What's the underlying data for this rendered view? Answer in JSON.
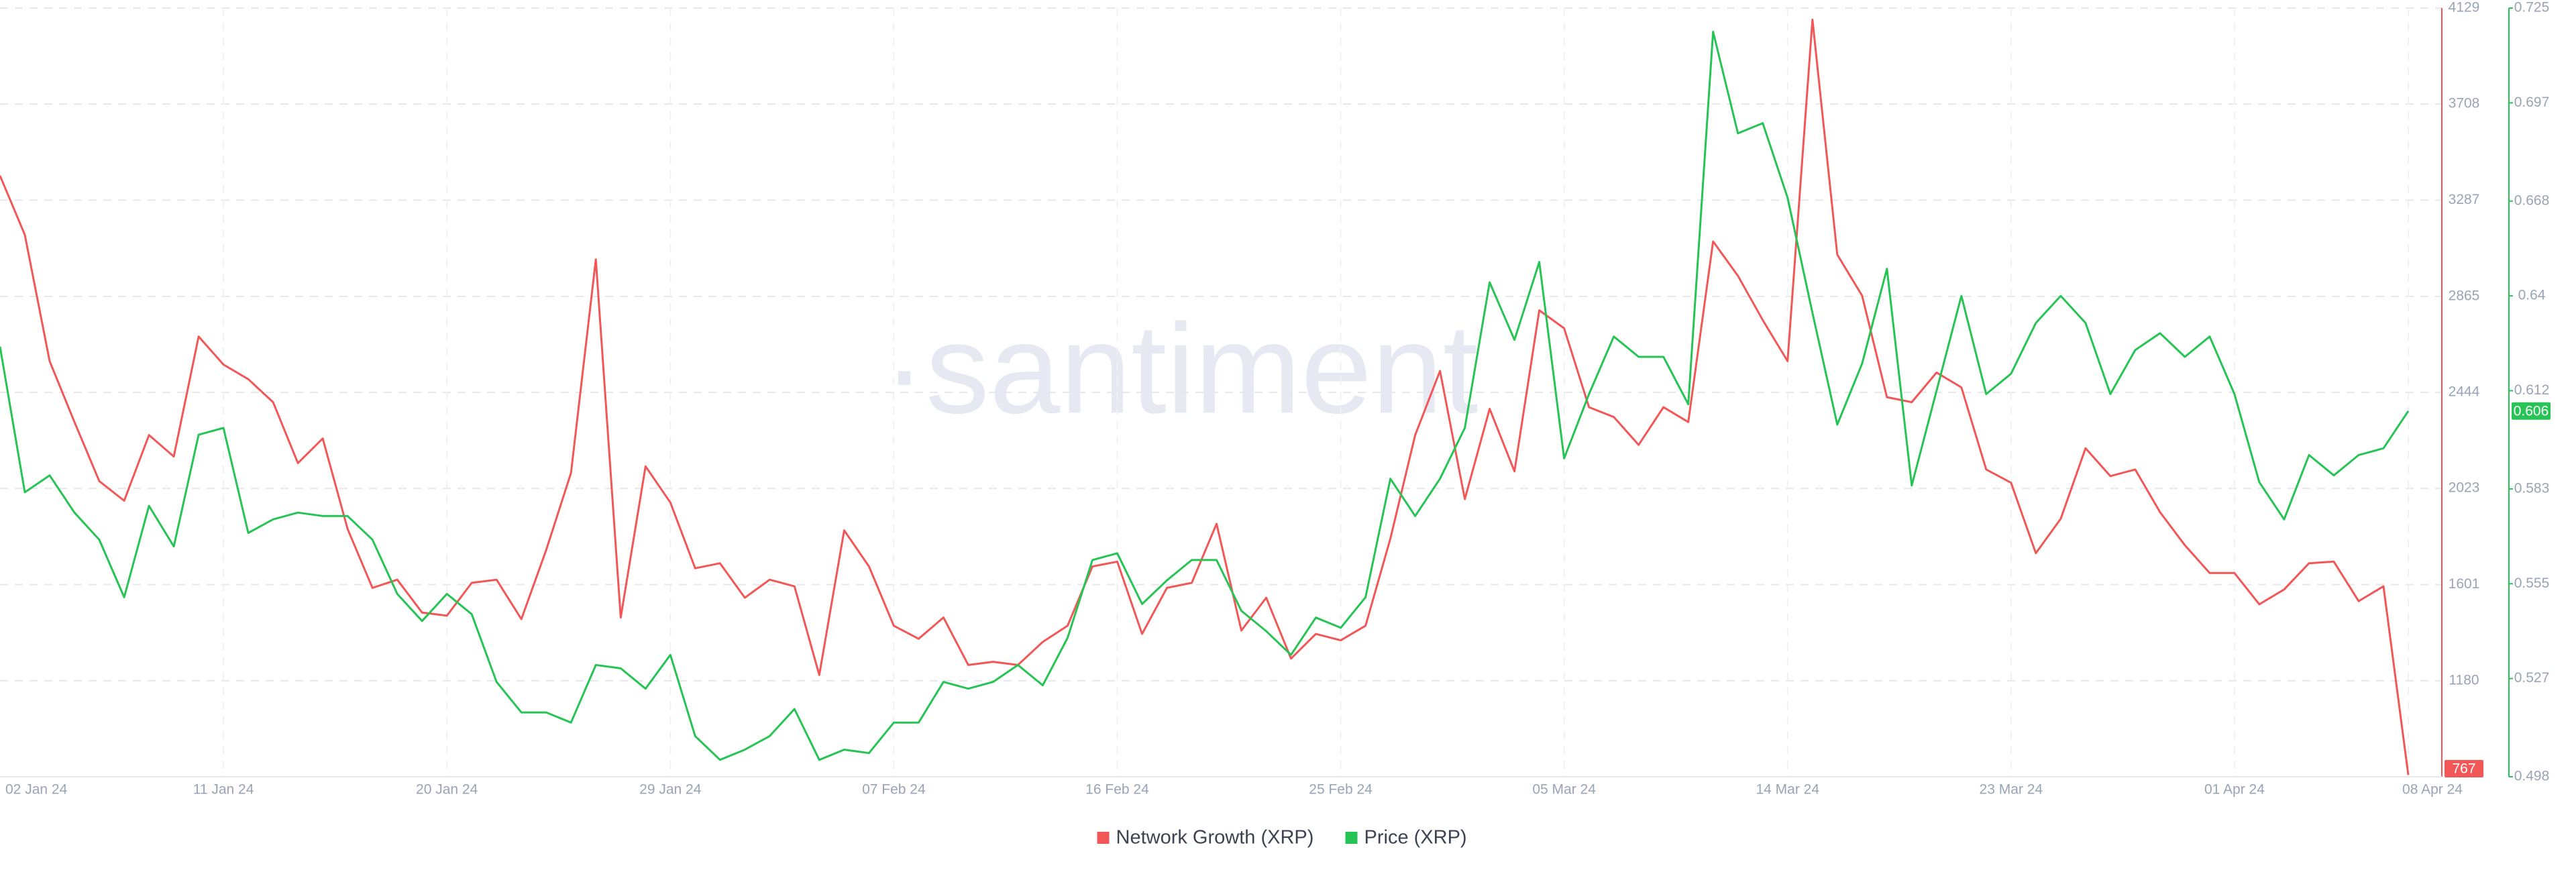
{
  "chart_data": {
    "type": "line",
    "watermark": "·santiment",
    "categories": [
      "02 Jan 24",
      null,
      null,
      null,
      null,
      null,
      null,
      null,
      null,
      "11 Jan 24",
      null,
      null,
      null,
      null,
      null,
      null,
      null,
      null,
      "20 Jan 24",
      null,
      null,
      null,
      null,
      null,
      null,
      null,
      null,
      "29 Jan 24",
      null,
      null,
      null,
      null,
      null,
      null,
      null,
      null,
      "07 Feb 24",
      null,
      null,
      null,
      null,
      null,
      null,
      null,
      null,
      "16 Feb 24",
      null,
      null,
      null,
      null,
      null,
      null,
      null,
      null,
      "25 Feb 24",
      null,
      null,
      null,
      null,
      null,
      null,
      null,
      null,
      "05 Mar 24",
      null,
      null,
      null,
      null,
      null,
      null,
      null,
      null,
      "14 Mar 24",
      null,
      null,
      null,
      null,
      null,
      null,
      null,
      null,
      "23 Mar 24",
      null,
      null,
      null,
      null,
      null,
      null,
      null,
      null,
      "01 Apr 24",
      null,
      null,
      null,
      null,
      null,
      null,
      "08 Apr 24"
    ],
    "series": [
      {
        "name": "Network Growth (XRP)",
        "color": "#f25757",
        "axis": "y",
        "values": [
          3394,
          3135,
          2581,
          2314,
          2055,
          1969,
          2257,
          2163,
          2689,
          2566,
          2502,
          2401,
          2134,
          2242,
          1846,
          1587,
          1623,
          1479,
          1465,
          1609,
          1623,
          1450,
          1753,
          2091,
          3027,
          1457,
          2120,
          1961,
          1673,
          1695,
          1544,
          1623,
          1594,
          1205,
          1839,
          1681,
          1421,
          1364,
          1457,
          1249,
          1263,
          1249,
          1350,
          1421,
          1681,
          1702,
          1385,
          1587,
          1609,
          1868,
          1400,
          1544,
          1277,
          1385,
          1357,
          1421,
          1803,
          2257,
          2538,
          1976,
          2372,
          2098,
          2804,
          2725,
          2379,
          2336,
          2214,
          2379,
          2314,
          3106,
          2955,
          2761,
          2581,
          4078,
          3048,
          2868,
          2423,
          2401,
          2531,
          2466,
          2106,
          2048,
          1739,
          1890,
          2199,
          2077,
          2106,
          1919,
          1774,
          1652,
          1652,
          1515,
          1580,
          1695,
          1702,
          1529,
          1594,
          767
        ]
      },
      {
        "name": "Price (XRP)",
        "color": "#26c454",
        "axis": "y2",
        "values": [
          0.625,
          0.582,
          0.587,
          0.576,
          0.568,
          0.551,
          0.578,
          0.566,
          0.599,
          0.601,
          0.57,
          0.574,
          0.576,
          0.575,
          0.575,
          0.568,
          0.552,
          0.544,
          0.552,
          0.546,
          0.526,
          0.517,
          0.517,
          0.514,
          0.531,
          0.53,
          0.524,
          0.534,
          0.51,
          0.503,
          0.506,
          0.51,
          0.518,
          0.503,
          0.506,
          0.505,
          0.514,
          0.514,
          0.526,
          0.524,
          0.526,
          0.531,
          0.525,
          0.539,
          0.562,
          0.564,
          0.549,
          0.556,
          0.562,
          0.562,
          0.547,
          0.541,
          0.534,
          0.545,
          0.542,
          0.551,
          0.586,
          0.575,
          0.586,
          0.601,
          0.644,
          0.627,
          0.65,
          0.592,
          0.611,
          0.628,
          0.622,
          0.622,
          0.608,
          0.718,
          0.688,
          0.691,
          0.669,
          0.635,
          0.602,
          0.62,
          0.648,
          0.584,
          0.612,
          0.64,
          0.611,
          0.617,
          0.632,
          0.64,
          0.632,
          0.611,
          0.624,
          0.629,
          0.622,
          0.628,
          0.611,
          0.585,
          0.574,
          0.593,
          0.587,
          0.593,
          0.595,
          0.606
        ]
      }
    ],
    "ylim": [
      759,
      4129
    ],
    "yticks": [
      1180,
      1601,
      2023,
      2444,
      2865,
      3287,
      3708,
      4129
    ],
    "y2lim": [
      0.498,
      0.725
    ],
    "y2ticks": [
      0.498,
      0.527,
      0.555,
      0.583,
      0.612,
      0.64,
      0.668,
      0.697,
      0.725
    ],
    "grid": true,
    "legend": "bottom"
  }
}
